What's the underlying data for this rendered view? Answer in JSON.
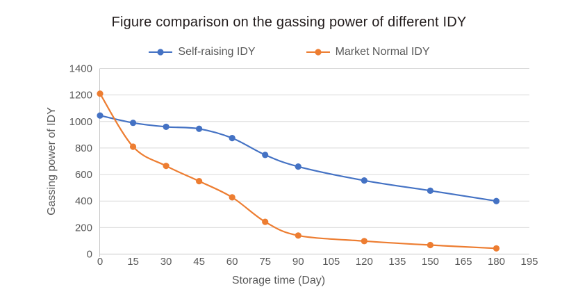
{
  "title": "Figure comparison on the gassing power of different IDY",
  "chart_data": {
    "type": "line",
    "title": "Figure comparison on the gassing power of different IDY",
    "xlabel": "Storage time (Day)",
    "ylabel": "Gassing power of IDY",
    "x": [
      0,
      15,
      30,
      45,
      60,
      75,
      90,
      120,
      150,
      180
    ],
    "series": [
      {
        "name": "Self-raising IDY",
        "color": "#4472C4",
        "values": [
          1045,
          990,
          960,
          945,
          875,
          748,
          660,
          555,
          478,
          400
        ]
      },
      {
        "name": "Market Normal IDY",
        "color": "#ED7D31",
        "values": [
          1210,
          810,
          665,
          550,
          428,
          243,
          140,
          98,
          68,
          43
        ]
      }
    ],
    "x_ticks": [
      0,
      15,
      30,
      45,
      60,
      75,
      90,
      105,
      120,
      135,
      150,
      165,
      180,
      195
    ],
    "y_ticks": [
      0,
      200,
      400,
      600,
      800,
      1000,
      1200,
      1400
    ],
    "xlim": [
      0,
      195
    ],
    "ylim": [
      0,
      1400
    ],
    "grid": "horizontal-only",
    "line_style": "smooth",
    "marker": "circle",
    "legend_position": "top-center",
    "colors": {
      "gridline": "#D9D9D9",
      "axis_line": "#C6C6C6",
      "tick_text": "#595959",
      "title_text": "#221C1C",
      "axis_title_text": "#595959",
      "background": "#FFFFFF"
    }
  }
}
